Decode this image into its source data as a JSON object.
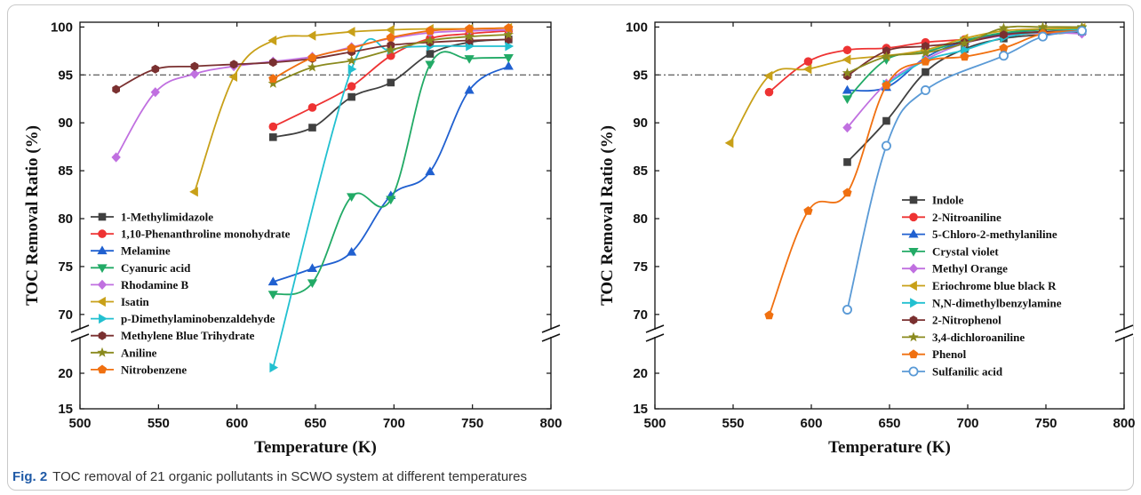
{
  "caption": {
    "label": "Fig. 2",
    "text": "TOC removal of 21 organic pollutants in SCWO system at different temperatures"
  },
  "chart_data": [
    {
      "type": "line",
      "xlabel": "Temperature (K)",
      "ylabel": "TOC Removal Ratio (%)",
      "xlim": [
        500,
        800
      ],
      "xticks": [
        500,
        550,
        600,
        650,
        700,
        750,
        800
      ],
      "ylim_upper": [
        68.5,
        100.5
      ],
      "ylim_lower": [
        15,
        25
      ],
      "yticks_upper": [
        70,
        75,
        80,
        85,
        90,
        95,
        100
      ],
      "yticks_lower": [
        15,
        20
      ],
      "axis_break": true,
      "reference_line": 95,
      "legend_position": "bottom-left",
      "series": [
        {
          "name": "1-Methylimidazole",
          "color": "#404040",
          "marker": "square",
          "x": [
            623,
            648,
            673,
            698,
            723,
            748,
            773
          ],
          "y": [
            88.5,
            89.5,
            92.7,
            94.2,
            97.2,
            98.4,
            98.7
          ]
        },
        {
          "name": "1,10-Phenanthroline monohydrate",
          "color": "#ee3333",
          "marker": "circle",
          "x": [
            623,
            648,
            673,
            698,
            723,
            748,
            773
          ],
          "y": [
            89.6,
            91.6,
            93.8,
            97.0,
            98.8,
            99.3,
            99.6
          ]
        },
        {
          "name": "Melamine",
          "color": "#2060d0",
          "marker": "triangle-up",
          "x": [
            623,
            648,
            673,
            698,
            723,
            748,
            773
          ],
          "y": [
            73.4,
            74.8,
            76.5,
            82.4,
            84.9,
            93.4,
            95.9
          ]
        },
        {
          "name": "Cyanuric acid",
          "color": "#22aa66",
          "marker": "triangle-down",
          "x": [
            623,
            648,
            673,
            698,
            723,
            748,
            773
          ],
          "y": [
            72.1,
            73.3,
            82.3,
            82.0,
            96.1,
            96.7,
            96.8
          ]
        },
        {
          "name": "Rhodamine B",
          "color": "#c070e0",
          "marker": "diamond",
          "x": [
            523,
            548,
            573,
            598,
            623,
            648,
            673,
            698,
            723,
            748,
            773
          ],
          "y": [
            86.4,
            93.2,
            95.1,
            95.9,
            96.4,
            96.9,
            97.9,
            98.8,
            99.4,
            99.6,
            99.7
          ]
        },
        {
          "name": "Isatin",
          "color": "#c8a018",
          "marker": "triangle-left",
          "x": [
            573,
            598,
            623,
            648,
            673,
            698,
            723,
            748,
            773
          ],
          "y": [
            82.8,
            94.8,
            98.6,
            99.1,
            99.5,
            99.7,
            99.8,
            99.8,
            99.9
          ]
        },
        {
          "name": "p-Dimethylaminobenzaldehyde",
          "color": "#22c0d0",
          "marker": "triangle-right",
          "x": [
            623,
            673,
            698,
            723,
            748,
            773
          ],
          "y": [
            20.8,
            95.6,
            97.6,
            98.0,
            98.0,
            98.0
          ]
        },
        {
          "name": "Methylene Blue Trihydrate",
          "color": "#7a3030",
          "marker": "hexagon",
          "x": [
            523,
            548,
            573,
            598,
            623,
            648,
            673,
            698,
            723,
            748,
            773
          ],
          "y": [
            93.5,
            95.6,
            95.9,
            96.1,
            96.3,
            96.7,
            97.4,
            98.1,
            98.4,
            98.6,
            98.7
          ]
        },
        {
          "name": "Aniline",
          "color": "#8a8a1e",
          "marker": "star",
          "x": [
            623,
            648,
            673,
            698,
            723,
            748,
            773
          ],
          "y": [
            94.1,
            95.8,
            96.5,
            97.6,
            98.6,
            99.0,
            99.2
          ]
        },
        {
          "name": "Nitrobenzene",
          "color": "#f07010",
          "marker": "pentagon",
          "x": [
            623,
            648,
            673,
            698,
            723,
            748,
            773
          ],
          "y": [
            94.6,
            96.8,
            97.8,
            98.9,
            99.6,
            99.8,
            99.9
          ]
        }
      ]
    },
    {
      "type": "line",
      "xlabel": "Temperature (K)",
      "ylabel": "TOC Removal Ratio (%)",
      "xlim": [
        500,
        800
      ],
      "xticks": [
        500,
        550,
        600,
        650,
        700,
        750,
        800
      ],
      "ylim_upper": [
        68.5,
        100.5
      ],
      "ylim_lower": [
        15,
        25
      ],
      "yticks_upper": [
        70,
        75,
        80,
        85,
        90,
        95,
        100
      ],
      "yticks_lower": [
        15,
        20
      ],
      "axis_break": true,
      "reference_line": 95,
      "legend_position": "bottom-right",
      "series": [
        {
          "name": "Indole",
          "color": "#404040",
          "marker": "square",
          "x": [
            623,
            648,
            673,
            698,
            723,
            748,
            773
          ],
          "y": [
            85.9,
            90.2,
            95.3,
            97.7,
            98.8,
            99.2,
            99.5
          ]
        },
        {
          "name": "2-Nitroaniline",
          "color": "#ee3333",
          "marker": "circle",
          "x": [
            573,
            598,
            623,
            648,
            673,
            698,
            723,
            748,
            773
          ],
          "y": [
            93.2,
            96.4,
            97.6,
            97.8,
            98.4,
            98.7,
            99.1,
            99.4,
            99.6
          ]
        },
        {
          "name": "5-Chloro-2-methylaniline",
          "color": "#2060d0",
          "marker": "triangle-up",
          "x": [
            623,
            648,
            673,
            698,
            723,
            748,
            773
          ],
          "y": [
            93.4,
            93.7,
            96.8,
            98.5,
            99.3,
            99.5,
            99.6
          ]
        },
        {
          "name": "Crystal violet",
          "color": "#22aa66",
          "marker": "triangle-down",
          "x": [
            623,
            648,
            673,
            698,
            723,
            748,
            773
          ],
          "y": [
            92.5,
            96.6,
            97.4,
            98.6,
            99.4,
            99.7,
            99.8
          ]
        },
        {
          "name": "Methyl Orange",
          "color": "#c070e0",
          "marker": "diamond",
          "x": [
            623,
            648,
            673,
            698,
            723,
            748,
            773
          ],
          "y": [
            89.5,
            94.1,
            96.6,
            98.3,
            99.1,
            99.4,
            99.3
          ]
        },
        {
          "name": "Eriochrome blue black R",
          "color": "#c8a018",
          "marker": "triangle-left",
          "x": [
            548,
            573,
            598,
            623,
            648,
            673,
            698,
            723,
            748,
            773
          ],
          "y": [
            87.9,
            94.9,
            95.6,
            96.6,
            97.0,
            97.6,
            98.8,
            99.6,
            99.8,
            99.9
          ]
        },
        {
          "name": "N,N-dimethylbenzylamine",
          "color": "#22c0d0",
          "marker": "triangle-right",
          "x": [
            648,
            673,
            698,
            723,
            748,
            773
          ],
          "y": [
            94.0,
            96.5,
            97.6,
            98.9,
            99.5,
            99.7
          ]
        },
        {
          "name": "2-Nitrophenol",
          "color": "#7a3030",
          "marker": "hexagon",
          "x": [
            623,
            648,
            673,
            698,
            723,
            748,
            773
          ],
          "y": [
            94.9,
            97.5,
            98.0,
            98.4,
            99.2,
            99.5,
            99.6
          ]
        },
        {
          "name": "3,4-dichloroaniline",
          "color": "#8a8a1e",
          "marker": "star",
          "x": [
            623,
            648,
            673,
            698,
            723,
            748,
            773
          ],
          "y": [
            95.2,
            96.9,
            97.3,
            98.3,
            99.9,
            100.0,
            100.0
          ]
        },
        {
          "name": "Phenol",
          "color": "#f07010",
          "marker": "pentagon",
          "x": [
            573,
            598,
            623,
            648,
            673,
            698,
            723,
            748,
            773
          ],
          "y": [
            69.9,
            80.8,
            82.7,
            93.9,
            96.4,
            96.9,
            97.8,
            99.3,
            99.6
          ]
        },
        {
          "name": "Sulfanilic acid",
          "color": "#5a9ad6",
          "marker": "hexagon-open",
          "x": [
            623,
            648,
            673,
            723,
            748,
            773
          ],
          "y": [
            70.5,
            87.6,
            93.4,
            97.0,
            99.0,
            99.6
          ]
        }
      ]
    }
  ]
}
